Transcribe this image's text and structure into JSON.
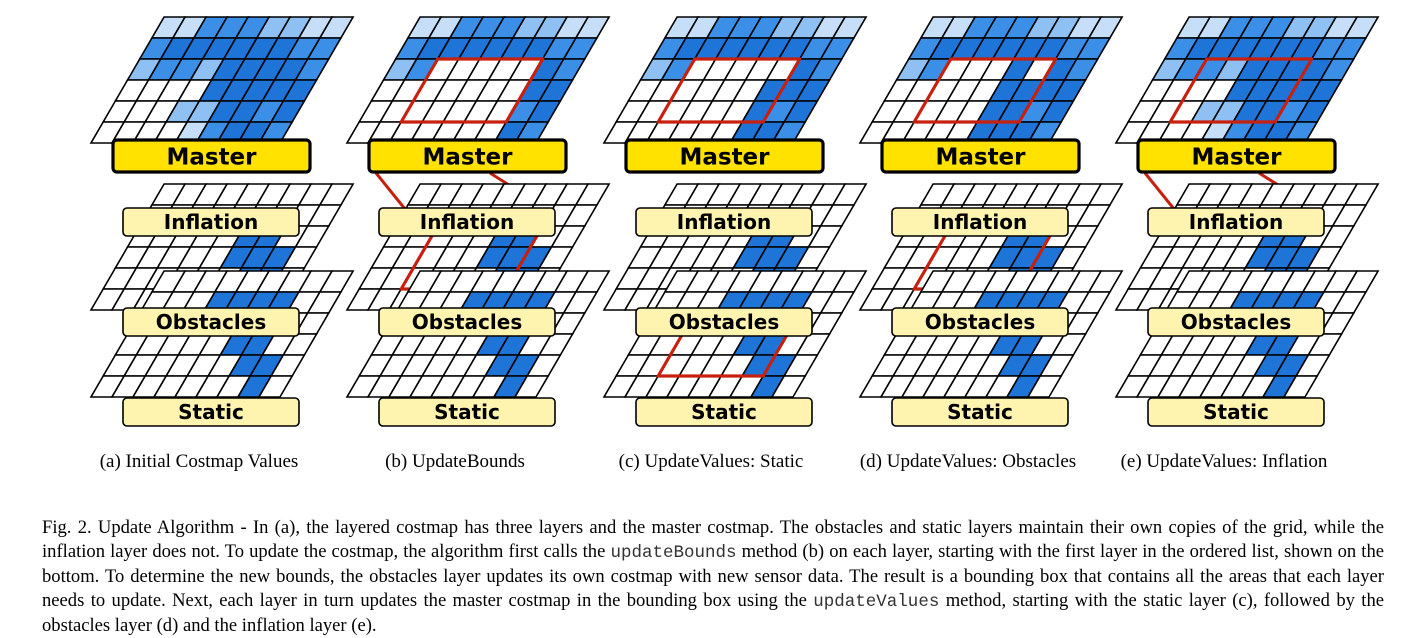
{
  "colors": {
    "master_fill": "#ffe200",
    "layer_label_fill": "#fff3b0",
    "bound_box": "#c8200e",
    "cost_dark": "#1f74d8",
    "cost_mid": "#3c8fe6",
    "cost_light": "#8fc0f3",
    "cost_pale": "#c6def8",
    "grid_line": "#000000"
  },
  "layer_labels": {
    "master": "Master",
    "inflation": "Inflation",
    "obstacles": "Obstacles",
    "static": "Static"
  },
  "panels": [
    {
      "caption": "(a)  Initial Costmap Values",
      "master_bounds": false,
      "inflation_link": false,
      "obstacles_bounds": false,
      "static_bounds": false
    },
    {
      "caption": "(b)  UpdateBounds",
      "master_bounds": true,
      "inflation_link": true,
      "obstacles_bounds": true,
      "static_bounds": false
    },
    {
      "caption": "(c)  UpdateValues: Static",
      "master_bounds": true,
      "inflation_link": false,
      "obstacles_bounds": false,
      "static_bounds": true
    },
    {
      "caption": "(d)  UpdateValues: Obstacles",
      "master_bounds": true,
      "inflation_link": false,
      "obstacles_bounds": true,
      "static_bounds": false
    },
    {
      "caption": "(e)  UpdateValues: Inflation",
      "master_bounds": true,
      "inflation_link": true,
      "obstacles_bounds": false,
      "static_bounds": false
    }
  ],
  "caption": {
    "t1": "Fig. 2.   Update Algorithm - In (a), the layered costmap has three layers and the master costmap. The obstacles and static layers maintain their own copies of the grid, while the inflation layer does not. To update the costmap, the algorithm first calls the ",
    "code1": "updateBounds",
    "t2": " method (b) on each layer, starting with the first layer in the ordered list, shown on the bottom. To determine the new bounds, the obstacles layer updates its own costmap with new sensor data. The result is a bounding box that contains all the areas that each layer needs to update. Next, each layer in turn updates the master costmap in the bounding box using the ",
    "code2": "updateValues",
    "t3": " method, starting with the static layer (c), followed by the obstacles layer (d) and the inflation layer (e)."
  }
}
